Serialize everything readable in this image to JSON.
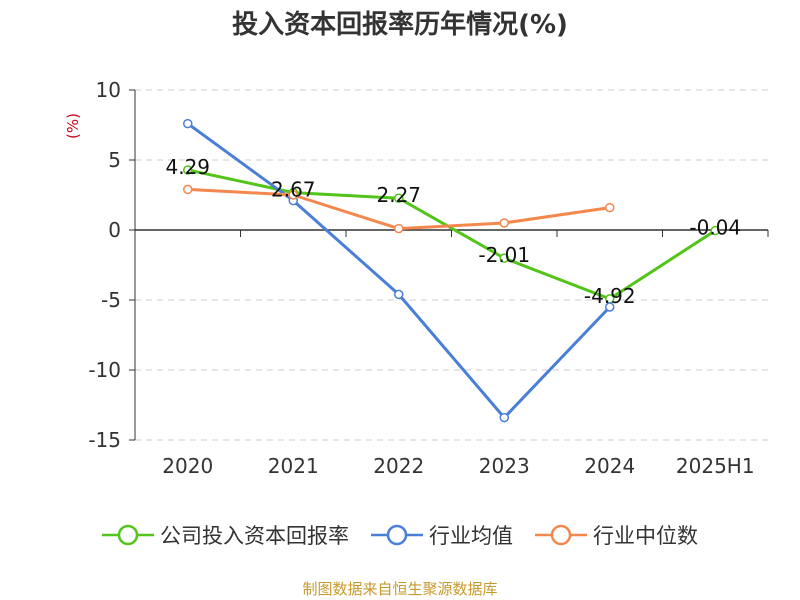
{
  "header": {
    "title": "投入资本回报率历年情况(%)"
  },
  "footer": {
    "source": "制图数据来自恒生聚源数据库"
  },
  "chart_data": {
    "type": "line",
    "categories": [
      "2020",
      "2021",
      "2022",
      "2023",
      "2024",
      "2025H1"
    ],
    "ylabel": "(%)",
    "ylim": [
      -15,
      10
    ],
    "yticks": [
      10,
      5,
      0,
      -5,
      -10,
      -15
    ],
    "grid": true,
    "legend_position": "bottom",
    "series": [
      {
        "name": "公司投入资本回报率",
        "color": "#52c41a",
        "values": [
          4.29,
          2.67,
          2.27,
          -2.01,
          -4.92,
          -0.04
        ],
        "labels": [
          "4.29",
          "2.67",
          "2.27",
          "-2.01",
          "-4.92",
          "-0.04"
        ]
      },
      {
        "name": "行业均值",
        "color": "#4a7fd8",
        "values": [
          7.6,
          2.1,
          -4.6,
          -13.4,
          -5.5,
          null
        ]
      },
      {
        "name": "行业中位数",
        "color": "#f4874e",
        "values": [
          2.9,
          2.5,
          0.1,
          0.5,
          1.6,
          null
        ]
      }
    ]
  }
}
